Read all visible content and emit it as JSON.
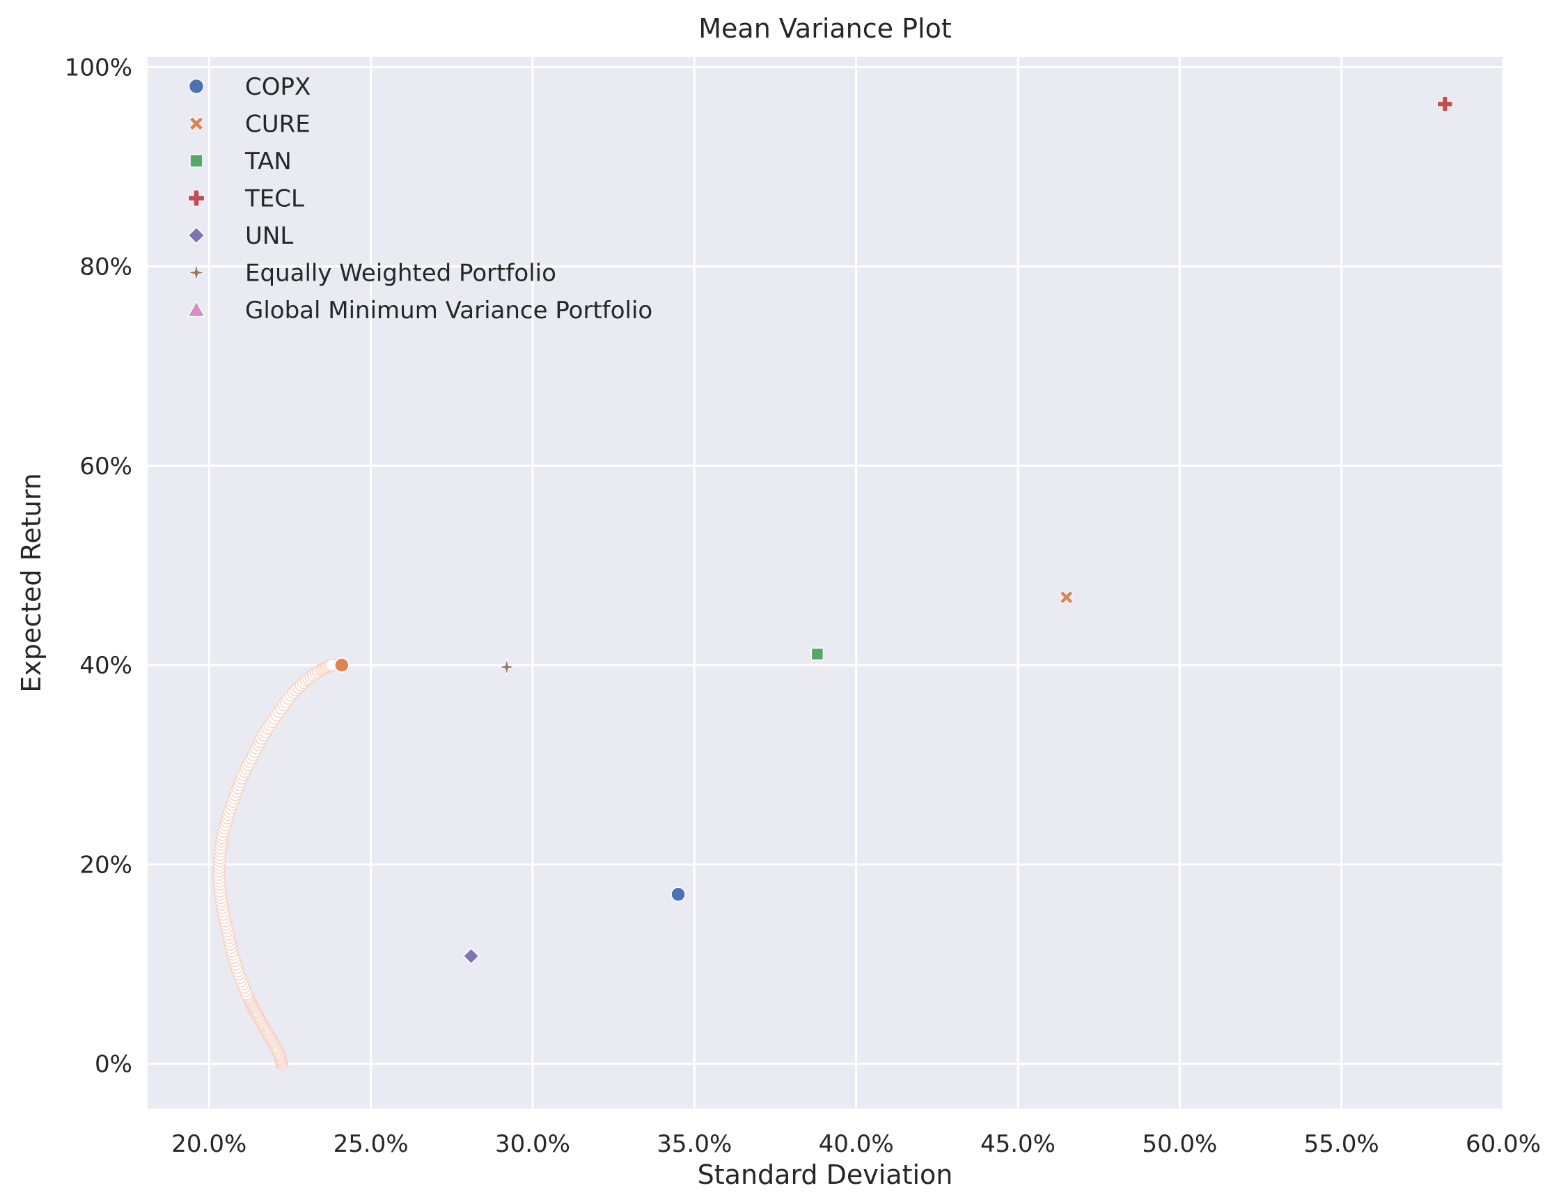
{
  "chart_data": {
    "type": "scatter",
    "title": "Mean Variance Plot",
    "xlabel": "Standard Deviation",
    "ylabel": "Expected Return",
    "xlim": [
      0.181,
      0.6
    ],
    "ylim": [
      -0.045,
      1.01
    ],
    "x_ticks": [
      {
        "value": 0.2,
        "label": "20.0%"
      },
      {
        "value": 0.25,
        "label": "25.0%"
      },
      {
        "value": 0.3,
        "label": "30.0%"
      },
      {
        "value": 0.35,
        "label": "35.0%"
      },
      {
        "value": 0.4,
        "label": "40.0%"
      },
      {
        "value": 0.45,
        "label": "45.0%"
      },
      {
        "value": 0.5,
        "label": "50.0%"
      },
      {
        "value": 0.55,
        "label": "55.0%"
      },
      {
        "value": 0.6,
        "label": "60.0%"
      }
    ],
    "y_ticks": [
      {
        "value": 0.0,
        "label": "0%"
      },
      {
        "value": 0.2,
        "label": "20%"
      },
      {
        "value": 0.4,
        "label": "40%"
      },
      {
        "value": 0.6,
        "label": "60%"
      },
      {
        "value": 0.8,
        "label": "80%"
      },
      {
        "value": 1.0,
        "label": "100%"
      }
    ],
    "grid": true,
    "legend_position": "upper-left",
    "background_color": "#eaeaf2",
    "grid_color": "#ffffff",
    "series": [
      {
        "name": "COPX",
        "marker": "circle",
        "color": "#4c72b0",
        "points": [
          [
            0.345,
            0.17
          ]
        ]
      },
      {
        "name": "CURE",
        "marker": "x",
        "color": "#dd8452",
        "points": [
          [
            0.465,
            0.468
          ]
        ]
      },
      {
        "name": "TAN",
        "marker": "square",
        "color": "#55a868",
        "points": [
          [
            0.388,
            0.411
          ]
        ]
      },
      {
        "name": "TECL",
        "marker": "plus",
        "color": "#c44e52",
        "points": [
          [
            0.582,
            0.963
          ]
        ]
      },
      {
        "name": "UNL",
        "marker": "diamond",
        "color": "#8172b3",
        "points": [
          [
            0.281,
            0.108
          ]
        ]
      },
      {
        "name": "Equally Weighted Portfolio",
        "marker": "star",
        "color": "#937860",
        "points": [
          [
            0.292,
            0.398
          ]
        ]
      },
      {
        "name": "Global Minimum Variance Portfolio",
        "marker": "triangle",
        "color": "#da8bc3",
        "points": []
      }
    ],
    "efficient_frontier": {
      "marker": "circle",
      "fill": "#ffffff",
      "edge_color": "#f5d5c8",
      "min_variance_point": [
        0.2,
        0.17
      ],
      "points": [
        [
          0.2225,
          0.0
        ],
        [
          0.2216,
          0.01
        ],
        [
          0.22,
          0.02
        ],
        [
          0.2182,
          0.03
        ],
        [
          0.2164,
          0.04
        ],
        [
          0.2147,
          0.05
        ],
        [
          0.2131,
          0.06
        ],
        [
          0.2116,
          0.07
        ],
        [
          0.2092,
          0.09
        ],
        [
          0.2073,
          0.11
        ],
        [
          0.2059,
          0.13
        ],
        [
          0.2045,
          0.15
        ],
        [
          0.2035,
          0.17
        ],
        [
          0.203,
          0.19
        ],
        [
          0.2034,
          0.21
        ],
        [
          0.2042,
          0.23
        ],
        [
          0.206,
          0.25
        ],
        [
          0.2081,
          0.27
        ],
        [
          0.2105,
          0.29
        ],
        [
          0.2136,
          0.31
        ],
        [
          0.2168,
          0.33
        ],
        [
          0.2209,
          0.35
        ],
        [
          0.2253,
          0.37
        ],
        [
          0.23,
          0.385
        ],
        [
          0.2345,
          0.395
        ],
        [
          0.238,
          0.4
        ]
      ],
      "end_point": {
        "color": "#dd8452",
        "value": [
          0.241,
          0.4
        ]
      }
    }
  }
}
